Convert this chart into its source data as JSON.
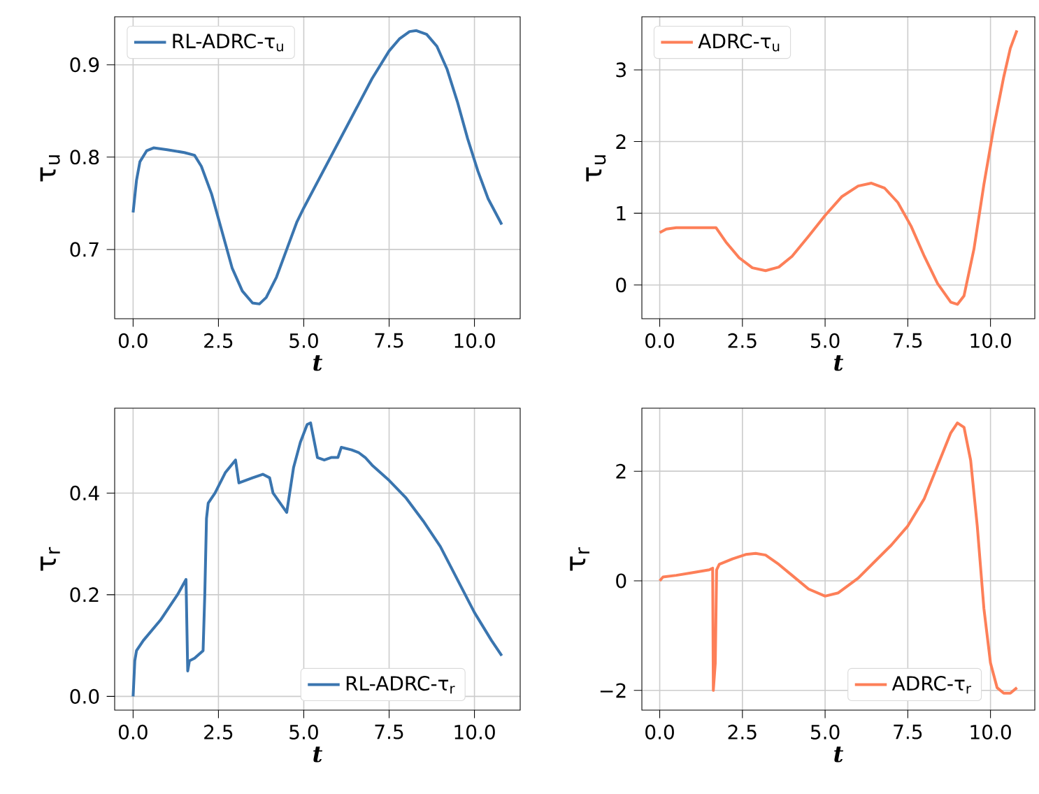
{
  "chart_data": [
    {
      "type": "line",
      "xlabel": "t",
      "ylabel": "τ$_{u}$",
      "xlim": [
        -0.54,
        11.34
      ],
      "ylim": [
        0.625,
        0.952
      ],
      "xticks": [
        {
          "value": 0,
          "label": "0.0"
        },
        {
          "value": 2.5,
          "label": "2.5"
        },
        {
          "value": 5,
          "label": "5.0"
        },
        {
          "value": 7.5,
          "label": "7.5"
        },
        {
          "value": 10,
          "label": "10.0"
        }
      ],
      "yticks": [
        0.7,
        0.8,
        0.9
      ],
      "grid": true,
      "legend": "top left",
      "line_style": "solid",
      "series": [
        {
          "name": "RL-ADRC-τ$_{u}$",
          "color": "#3a75af",
          "x": [
            0,
            0.1,
            0.2,
            0.4,
            0.6,
            1.0,
            1.5,
            1.8,
            2.0,
            2.3,
            2.6,
            2.9,
            3.2,
            3.5,
            3.7,
            3.9,
            4.2,
            4.5,
            4.8,
            5.0,
            5.5,
            6.0,
            6.5,
            7.0,
            7.5,
            7.8,
            8.1,
            8.3,
            8.6,
            8.9,
            9.2,
            9.5,
            9.8,
            10.1,
            10.4,
            10.8
          ],
          "values": [
            0.74,
            0.775,
            0.795,
            0.807,
            0.81,
            0.808,
            0.805,
            0.802,
            0.79,
            0.76,
            0.72,
            0.68,
            0.655,
            0.642,
            0.641,
            0.648,
            0.67,
            0.7,
            0.73,
            0.745,
            0.78,
            0.815,
            0.85,
            0.885,
            0.915,
            0.928,
            0.936,
            0.937,
            0.933,
            0.92,
            0.895,
            0.86,
            0.82,
            0.785,
            0.755,
            0.727
          ]
        }
      ]
    },
    {
      "type": "line",
      "xlabel": "t",
      "ylabel": "τ$_{u}$",
      "xlim": [
        -0.54,
        11.34
      ],
      "ylim": [
        -0.47,
        3.74
      ],
      "xticks": [
        {
          "value": 0,
          "label": "0.0"
        },
        {
          "value": 2.5,
          "label": "2.5"
        },
        {
          "value": 5,
          "label": "5.0"
        },
        {
          "value": 7.5,
          "label": "7.5"
        },
        {
          "value": 10,
          "label": "10.0"
        }
      ],
      "yticks": [
        0,
        1,
        2,
        3
      ],
      "grid": true,
      "legend": "top left",
      "line_style": "solid",
      "series": [
        {
          "name": "ADRC-τ$_{u}$",
          "color": "#fd7f58",
          "x": [
            0,
            0.2,
            0.5,
            1.0,
            1.6,
            1.7,
            2.0,
            2.4,
            2.8,
            3.2,
            3.6,
            4.0,
            4.5,
            5.0,
            5.5,
            6.0,
            6.4,
            6.8,
            7.2,
            7.6,
            8.0,
            8.4,
            8.8,
            9.0,
            9.2,
            9.5,
            9.8,
            10.1,
            10.4,
            10.6,
            10.8
          ],
          "values": [
            0.73,
            0.78,
            0.8,
            0.8,
            0.8,
            0.8,
            0.6,
            0.38,
            0.24,
            0.2,
            0.25,
            0.4,
            0.68,
            0.97,
            1.23,
            1.38,
            1.42,
            1.35,
            1.15,
            0.82,
            0.4,
            0.02,
            -0.24,
            -0.27,
            -0.15,
            0.5,
            1.4,
            2.2,
            2.9,
            3.3,
            3.55
          ]
        }
      ]
    },
    {
      "type": "line",
      "xlabel": "t",
      "ylabel": "τ$_{r}$",
      "xlim": [
        -0.54,
        11.34
      ],
      "ylim": [
        -0.027,
        0.567
      ],
      "xticks": [
        {
          "value": 0,
          "label": "0.0"
        },
        {
          "value": 2.5,
          "label": "2.5"
        },
        {
          "value": 5,
          "label": "5.0"
        },
        {
          "value": 7.5,
          "label": "7.5"
        },
        {
          "value": 10,
          "label": "10.0"
        }
      ],
      "yticks": [
        {
          "value": 0,
          "label": "0.0"
        },
        0.2,
        0.4
      ],
      "grid": true,
      "legend": "bottom right",
      "line_style": "solid",
      "series": [
        {
          "name": "RL-ADRC-τ$_{r}$",
          "color": "#3a75af",
          "x": [
            0,
            0.05,
            0.1,
            0.3,
            0.8,
            1.3,
            1.55,
            1.6,
            1.65,
            1.8,
            2.05,
            2.1,
            2.15,
            2.2,
            2.4,
            2.7,
            3.0,
            3.1,
            3.5,
            3.8,
            4.0,
            4.1,
            4.5,
            4.7,
            4.9,
            5.1,
            5.2,
            5.4,
            5.6,
            5.8,
            6.0,
            6.1,
            6.4,
            6.6,
            6.8,
            7.0,
            7.5,
            8.0,
            8.5,
            9.0,
            9.5,
            10.0,
            10.5,
            10.8
          ],
          "values": [
            0,
            0.07,
            0.09,
            0.11,
            0.15,
            0.2,
            0.23,
            0.05,
            0.07,
            0.075,
            0.09,
            0.2,
            0.35,
            0.38,
            0.4,
            0.44,
            0.465,
            0.42,
            0.43,
            0.437,
            0.43,
            0.4,
            0.362,
            0.45,
            0.5,
            0.535,
            0.538,
            0.47,
            0.465,
            0.47,
            0.47,
            0.49,
            0.485,
            0.48,
            0.47,
            0.455,
            0.425,
            0.39,
            0.345,
            0.295,
            0.23,
            0.165,
            0.11,
            0.08
          ]
        }
      ]
    },
    {
      "type": "line",
      "xlabel": "t",
      "ylabel": "τ$_{r}$",
      "xlim": [
        -0.54,
        11.34
      ],
      "ylim": [
        -2.36,
        3.15
      ],
      "xticks": [
        {
          "value": 0,
          "label": "0.0"
        },
        {
          "value": 2.5,
          "label": "2.5"
        },
        {
          "value": 5,
          "label": "5.0"
        },
        {
          "value": 7.5,
          "label": "7.5"
        },
        {
          "value": 10,
          "label": "10.0"
        }
      ],
      "yticks": [
        {
          "value": -2,
          "label": "−2"
        },
        0,
        2
      ],
      "grid": true,
      "legend": "bottom right",
      "line_style": "solid",
      "series": [
        {
          "name": "ADRC-τ$_{r}$",
          "color": "#fd7f58",
          "x": [
            0,
            0.1,
            0.5,
            1.0,
            1.5,
            1.6,
            1.62,
            1.68,
            1.72,
            1.8,
            2.2,
            2.6,
            2.9,
            3.2,
            3.6,
            4.0,
            4.5,
            5.0,
            5.4,
            6.0,
            6.5,
            7.0,
            7.5,
            8.0,
            8.4,
            8.8,
            9.0,
            9.2,
            9.4,
            9.6,
            9.8,
            10.0,
            10.2,
            10.4,
            10.6,
            10.8
          ],
          "values": [
            0,
            0.07,
            0.1,
            0.15,
            0.2,
            0.23,
            -2.0,
            -1.5,
            0.2,
            0.3,
            0.4,
            0.48,
            0.5,
            0.47,
            0.3,
            0.1,
            -0.15,
            -0.28,
            -0.22,
            0.05,
            0.35,
            0.65,
            1.0,
            1.5,
            2.1,
            2.7,
            2.88,
            2.8,
            2.2,
            1.0,
            -0.5,
            -1.5,
            -1.95,
            -2.05,
            -2.05,
            -1.95
          ]
        }
      ]
    }
  ]
}
